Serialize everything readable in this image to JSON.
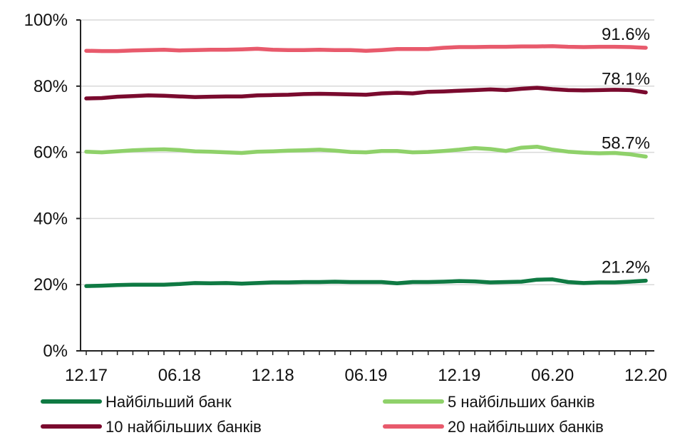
{
  "chart_data": {
    "type": "line",
    "title": "",
    "xlabel": "",
    "ylabel": "",
    "ylim": [
      0,
      100
    ],
    "y_ticks": [
      "0%",
      "20%",
      "40%",
      "60%",
      "80%",
      "100%"
    ],
    "x_ticks": [
      "12.17",
      "06.18",
      "12.18",
      "06.19",
      "12.19",
      "06.20",
      "12.20"
    ],
    "x": [
      "12.17",
      "01.18",
      "02.18",
      "03.18",
      "04.18",
      "05.18",
      "06.18",
      "07.18",
      "08.18",
      "09.18",
      "10.18",
      "11.18",
      "12.18",
      "01.19",
      "02.19",
      "03.19",
      "04.19",
      "05.19",
      "06.19",
      "07.19",
      "08.19",
      "09.19",
      "10.19",
      "11.19",
      "12.19",
      "01.20",
      "02.20",
      "03.20",
      "04.20",
      "05.20",
      "06.20",
      "07.20",
      "08.20",
      "09.20",
      "10.20",
      "11.20",
      "12.20"
    ],
    "grid": "horizontal",
    "legend": "bottom",
    "series": [
      {
        "name": "Найбільший банк",
        "color": "#0f7a43",
        "end_label": "21.2%",
        "values": [
          19.6,
          19.7,
          19.9,
          20.0,
          20.0,
          20.0,
          20.2,
          20.5,
          20.4,
          20.5,
          20.3,
          20.5,
          20.7,
          20.7,
          20.8,
          20.8,
          20.9,
          20.8,
          20.8,
          20.8,
          20.4,
          20.8,
          20.8,
          20.9,
          21.1,
          21.0,
          20.7,
          20.8,
          20.9,
          21.5,
          21.6,
          20.8,
          20.5,
          20.7,
          20.7,
          20.9,
          21.2
        ]
      },
      {
        "name": "5 найбільших банків",
        "color": "#8fd16a",
        "end_label": "58.7%",
        "values": [
          60.2,
          60.0,
          60.3,
          60.6,
          60.8,
          60.9,
          60.7,
          60.3,
          60.2,
          60.0,
          59.8,
          60.2,
          60.3,
          60.5,
          60.6,
          60.8,
          60.5,
          60.1,
          60.0,
          60.4,
          60.4,
          60.0,
          60.1,
          60.4,
          60.8,
          61.3,
          61.0,
          60.4,
          61.4,
          61.7,
          60.8,
          60.2,
          59.9,
          59.7,
          59.8,
          59.4,
          58.7
        ]
      },
      {
        "name": "10 найбільших банків",
        "color": "#7a0a2e",
        "end_label": "78.1%",
        "values": [
          76.3,
          76.4,
          76.8,
          77.0,
          77.2,
          77.1,
          76.9,
          76.7,
          76.8,
          76.9,
          76.9,
          77.2,
          77.3,
          77.4,
          77.6,
          77.7,
          77.6,
          77.5,
          77.4,
          77.8,
          78.0,
          77.8,
          78.3,
          78.4,
          78.6,
          78.8,
          79.0,
          78.8,
          79.2,
          79.5,
          79.1,
          78.8,
          78.7,
          78.8,
          78.9,
          78.8,
          78.1
        ]
      },
      {
        "name": "20 найбільших банків",
        "color": "#e85a6c",
        "end_label": "91.6%",
        "values": [
          90.7,
          90.6,
          90.6,
          90.8,
          90.9,
          91.0,
          90.8,
          90.9,
          91.0,
          91.0,
          91.1,
          91.3,
          91.0,
          90.9,
          90.9,
          91.0,
          90.9,
          90.9,
          90.7,
          90.9,
          91.2,
          91.2,
          91.2,
          91.6,
          91.8,
          91.8,
          91.9,
          91.9,
          92.0,
          92.0,
          92.1,
          91.9,
          91.8,
          91.9,
          91.9,
          91.8,
          91.6
        ]
      }
    ],
    "legend_order": [
      0,
      1,
      2,
      3
    ]
  }
}
